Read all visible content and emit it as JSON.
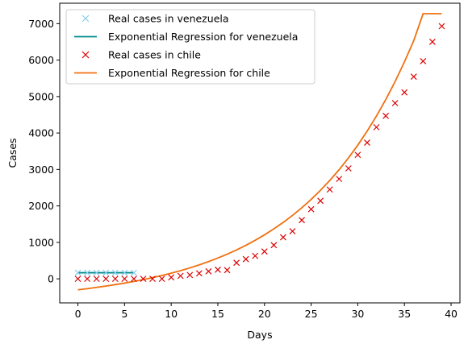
{
  "chart_data": {
    "type": "line",
    "title": "",
    "xlabel": "Days",
    "ylabel": "Cases",
    "xlim": [
      -1.95,
      40.95
    ],
    "ylim": [
      -660,
      7560
    ],
    "xticks": [
      0,
      5,
      10,
      15,
      20,
      25,
      30,
      35,
      40
    ],
    "yticks": [
      0,
      1000,
      2000,
      3000,
      4000,
      5000,
      6000,
      7000
    ],
    "grid": false,
    "legend_position": "top-left",
    "series": [
      {
        "name": "Real cases in venezuela",
        "kind": "scatter",
        "marker": "x",
        "color": "#87ceeb",
        "x": [
          0,
          1,
          2,
          3,
          4,
          5,
          6
        ],
        "y": [
          167,
          167,
          167,
          167,
          167,
          167,
          167
        ]
      },
      {
        "name": "Exponential Regression for venezuela",
        "kind": "line",
        "color": "#008b8b",
        "x": [
          0,
          1,
          2,
          3,
          4,
          5,
          6
        ],
        "y": [
          167,
          167,
          167,
          167,
          167,
          167,
          167
        ]
      },
      {
        "name": "Real cases in chile",
        "kind": "scatter",
        "marker": "x",
        "color": "#dd0000",
        "x": [
          0,
          1,
          2,
          3,
          4,
          5,
          6,
          7,
          8,
          9,
          10,
          11,
          12,
          13,
          14,
          15,
          16,
          17,
          18,
          19,
          20,
          21,
          22,
          23,
          24,
          25,
          26,
          27,
          28,
          29,
          30,
          31,
          32,
          33,
          34,
          35,
          36,
          37,
          38,
          39
        ],
        "y": [
          0,
          0,
          0,
          0,
          0,
          0,
          0,
          0,
          0,
          0,
          40,
          80,
          105,
          150,
          205,
          250,
          240,
          440,
          540,
          630,
          750,
          925,
          1140,
          1305,
          1610,
          1910,
          2140,
          2450,
          2740,
          3030,
          3400,
          3735,
          4160,
          4470,
          4820,
          5115,
          5545,
          5970,
          6500,
          6930
        ]
      },
      {
        "name": "Exponential Regression for chile",
        "kind": "line",
        "color": "#f07010",
        "x": [
          0,
          1,
          2,
          3,
          4,
          5,
          6,
          7,
          8,
          9,
          10,
          11,
          12,
          13,
          14,
          15,
          16,
          17,
          18,
          19,
          20,
          21,
          22,
          23,
          24,
          25,
          26,
          27,
          28,
          29,
          30,
          31,
          32,
          33,
          34,
          35,
          36,
          37,
          38,
          39
        ],
        "y": [
          -300,
          -270,
          -234,
          -198,
          -159,
          -117,
          -71,
          -21,
          32,
          91,
          155,
          224,
          300,
          382,
          472,
          570,
          676,
          792,
          919,
          1057,
          1206,
          1369,
          1546,
          1739,
          1949,
          2178,
          2427,
          2699,
          2994,
          3316,
          3667,
          4049,
          4465,
          4918,
          5411,
          5949,
          6534,
          7272,
          7272,
          7272
        ]
      }
    ]
  }
}
